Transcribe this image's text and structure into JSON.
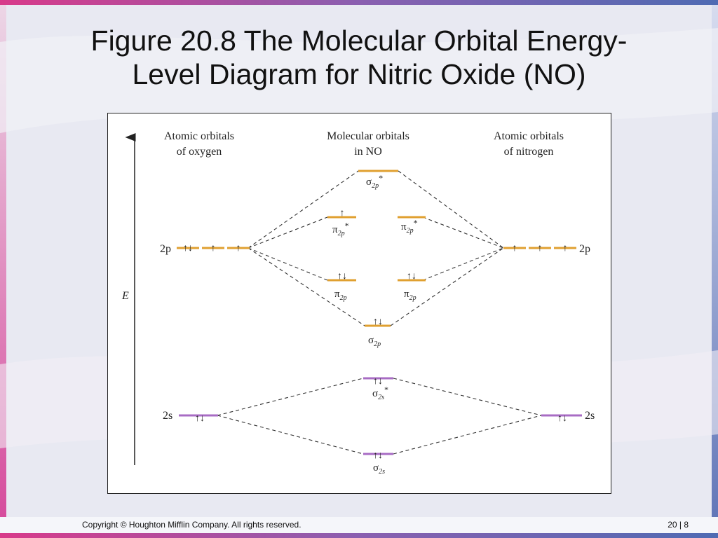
{
  "slide": {
    "title_line1": "Figure 20.8  The Molecular Orbital Energy-",
    "title_line2": "Level Diagram for Nitric Oxide (NO)",
    "footer_copyright": "Copyright © Houghton Mifflin Company. All rights reserved.",
    "footer_page": "20 | 8"
  },
  "colors": {
    "p_level": "#e0a030",
    "s_level": "#a86cc4",
    "background": "#e7e8f1",
    "accent_magenta": "#d04090",
    "accent_blue": "#5a6fb0"
  },
  "diagram": {
    "energy_axis_label": "E",
    "headers": {
      "left_line1": "Atomic orbitals",
      "left_line2": "of oxygen",
      "center_line1": "Molecular orbitals",
      "center_line2": "in NO",
      "right_line1": "Atomic orbitals",
      "right_line2": "of nitrogen"
    },
    "atomic_labels": {
      "o_2p": "2p",
      "o_2s": "2s",
      "n_2p": "2p",
      "n_2s": "2s"
    },
    "mo_labels": {
      "sigma_star_2p": {
        "symbol": "σ",
        "sub": "2p",
        "sup": "*"
      },
      "pi_star_2p_a": {
        "symbol": "π",
        "sub": "2p",
        "sup": "*"
      },
      "pi_star_2p_b": {
        "symbol": "π",
        "sub": "2p",
        "sup": "*"
      },
      "pi_2p_a": {
        "symbol": "π",
        "sub": "2p",
        "sup": ""
      },
      "pi_2p_b": {
        "symbol": "π",
        "sub": "2p",
        "sup": ""
      },
      "sigma_2p": {
        "symbol": "σ",
        "sub": "2p",
        "sup": ""
      },
      "sigma_star_2s": {
        "symbol": "σ",
        "sub": "2s",
        "sup": "*"
      },
      "sigma_2s": {
        "symbol": "σ",
        "sub": "2s",
        "sup": ""
      }
    },
    "electrons": {
      "o_2p": [
        "↑↓",
        "↑",
        "↑"
      ],
      "n_2p": [
        "↑",
        "↑",
        "↑"
      ],
      "o_2s": "↑↓",
      "n_2s": "↑↓",
      "sigma_star_2p": "",
      "pi_star_2p_a": "↑",
      "pi_star_2p_b": "",
      "pi_2p_a": "↑↓",
      "pi_2p_b": "↑↓",
      "sigma_2p": "↑↓",
      "sigma_star_2s": "↑↓",
      "sigma_2s": "↑↓"
    }
  }
}
